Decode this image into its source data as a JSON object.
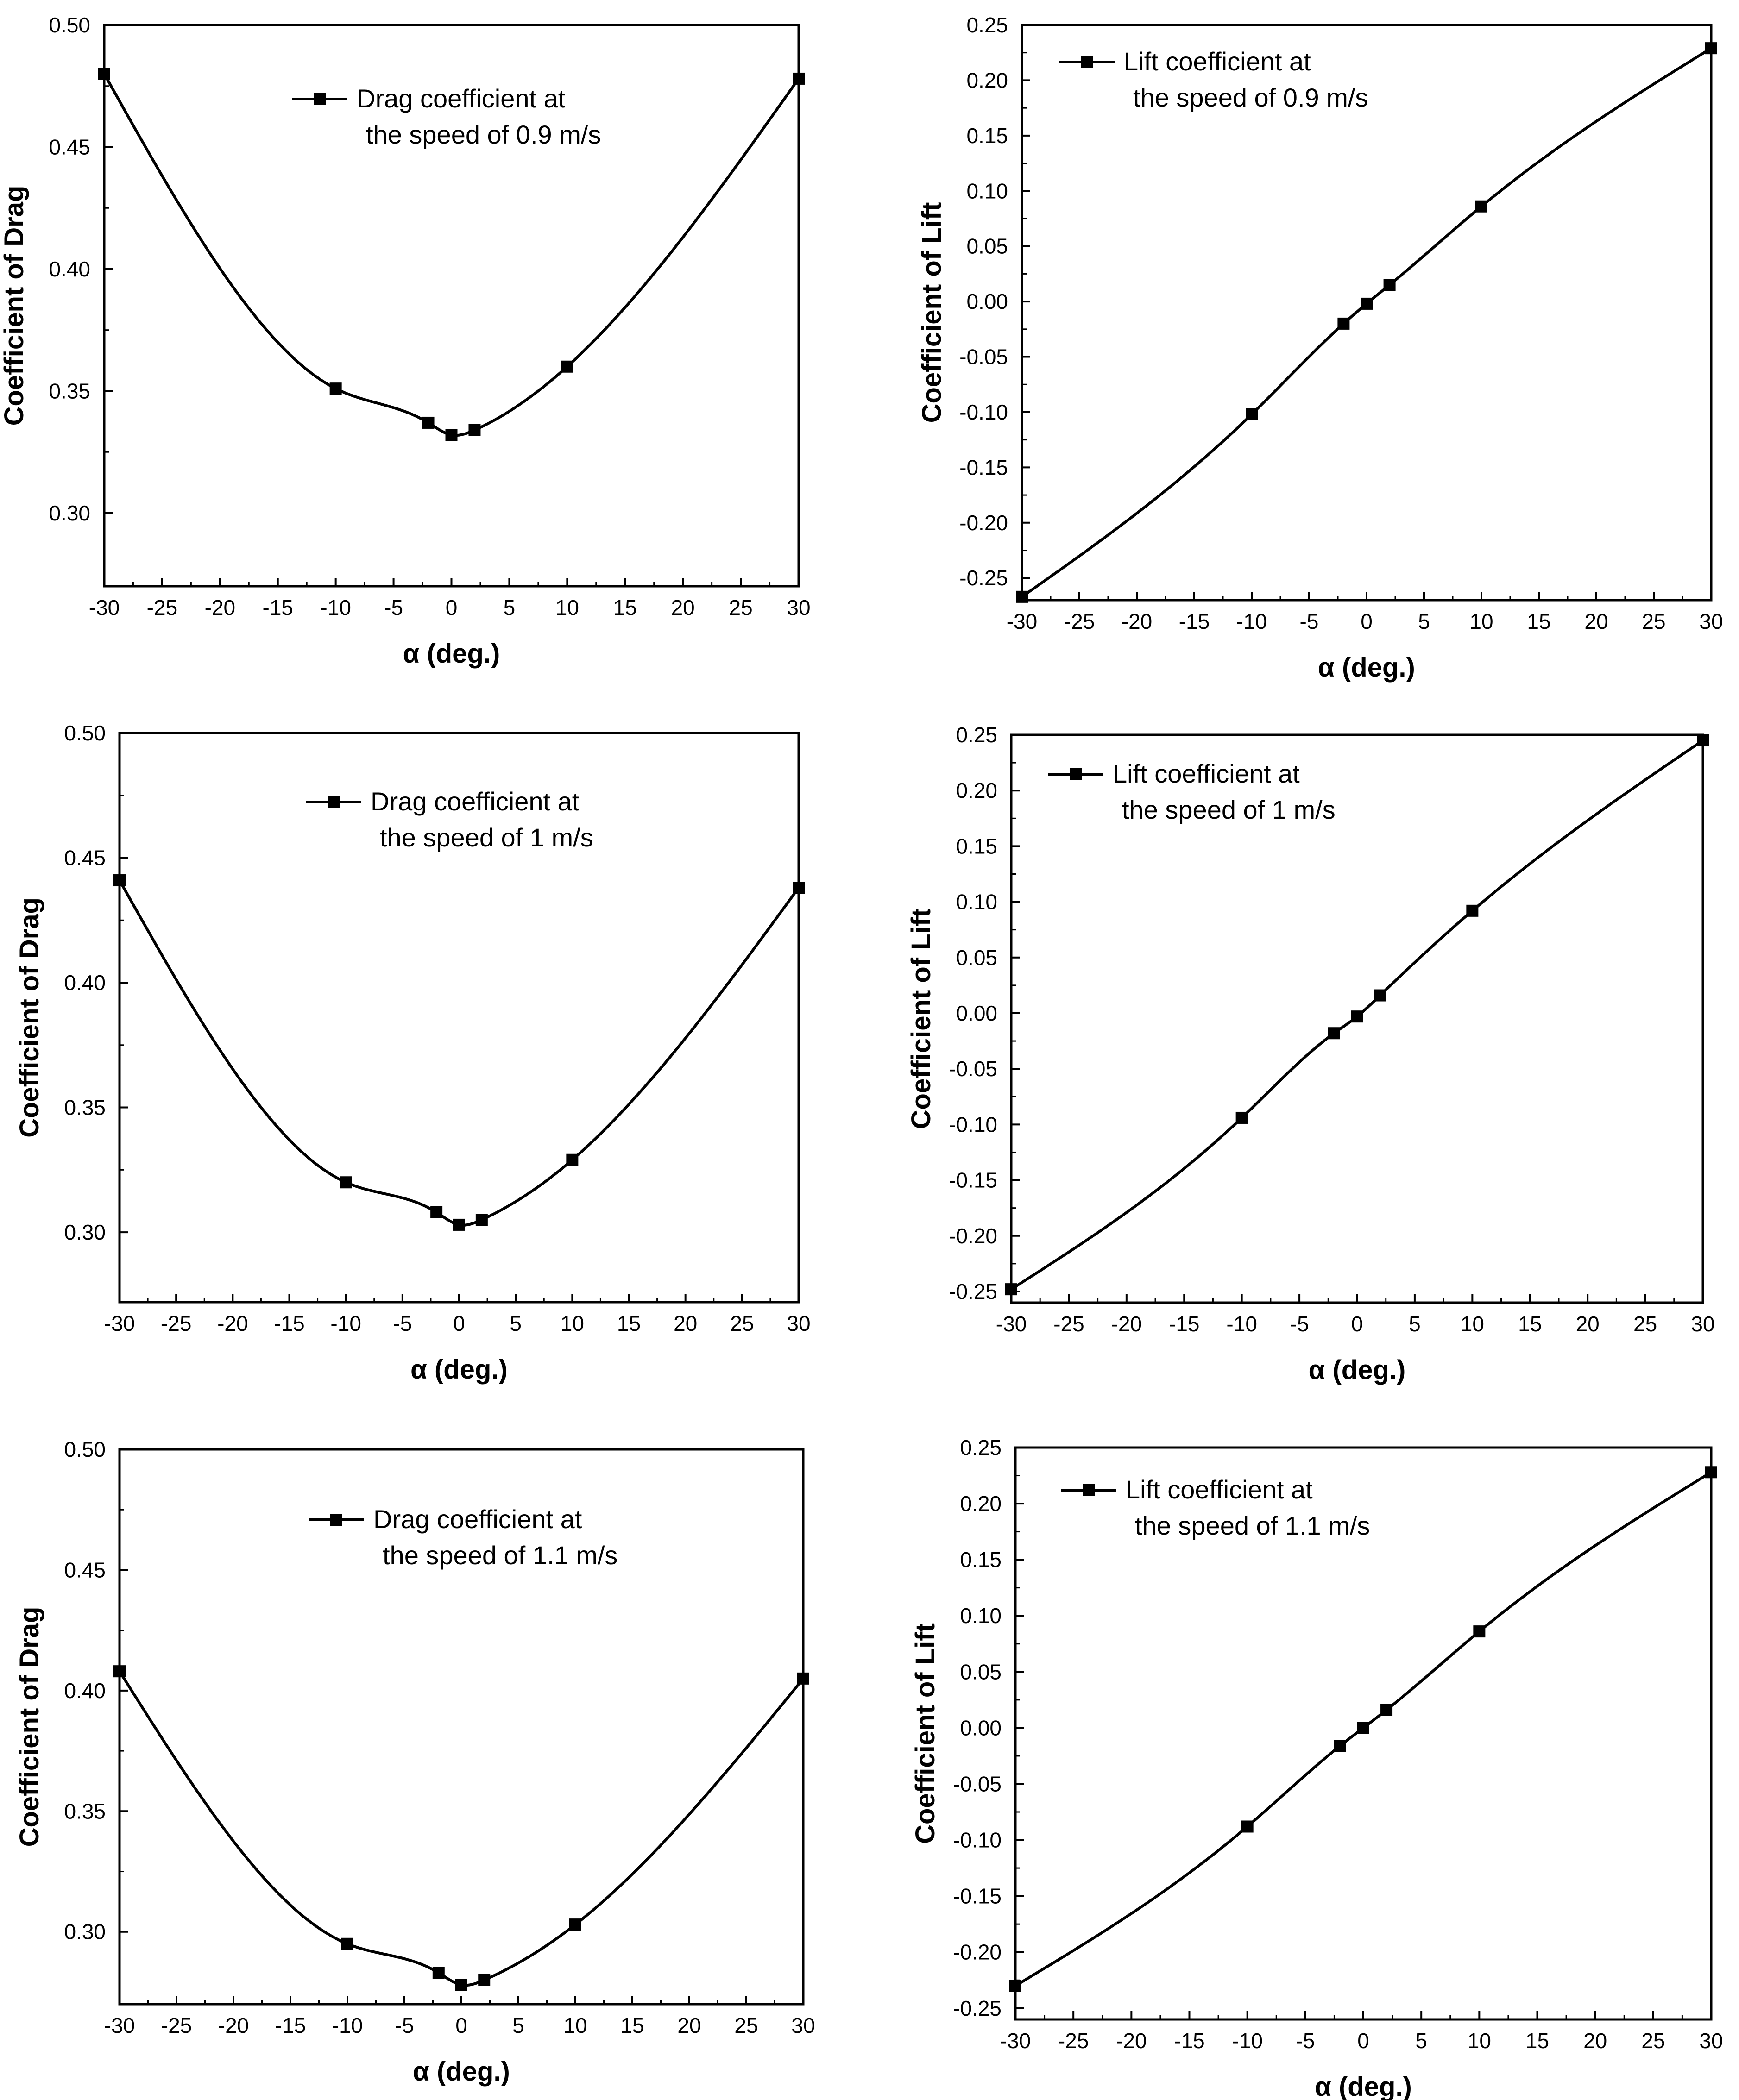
{
  "chart_data": [
    {
      "type": "line",
      "series_name": "Drag coefficient at the speed of 0.9 m/s",
      "legend_lines": [
        "Drag coefficient at",
        "the speed of 0.9 m/s"
      ],
      "xlabel": "α (deg.)",
      "ylabel": "Coefficient of Drag",
      "x": [
        -30,
        -10,
        -2,
        0,
        2,
        10,
        30
      ],
      "y": [
        0.48,
        0.351,
        0.337,
        0.332,
        0.334,
        0.36,
        0.478
      ],
      "xlim": [
        -30,
        30
      ],
      "ylim": [
        0.27,
        0.5
      ],
      "x_ticks": [
        "-30",
        "-25",
        "-20",
        "-15",
        "-10",
        "-5",
        "0",
        "5",
        "10",
        "15",
        "20",
        "25",
        "30"
      ],
      "y_ticks": [
        "0.30",
        "0.35",
        "0.40",
        "0.45",
        "0.50"
      ],
      "legend_position": "top-center"
    },
    {
      "type": "line",
      "series_name": "Lift coefficient at the speed of 0.9 m/s",
      "legend_lines": [
        "Lift coefficient at",
        "the speed of 0.9 m/s"
      ],
      "xlabel": "α (deg.)",
      "ylabel": "Coefficient of Lift",
      "x": [
        -30,
        -10,
        -2,
        0,
        2,
        10,
        30
      ],
      "y": [
        -0.267,
        -0.102,
        -0.02,
        -0.002,
        0.015,
        0.086,
        0.229
      ],
      "xlim": [
        -30,
        30
      ],
      "ylim": [
        -0.27,
        0.25
      ],
      "x_ticks": [
        "-30",
        "-25",
        "-20",
        "-15",
        "-10",
        "-5",
        "0",
        "5",
        "10",
        "15",
        "20",
        "25",
        "30"
      ],
      "y_ticks": [
        "-0.25",
        "-0.20",
        "-0.15",
        "-0.10",
        "-0.05",
        "0.00",
        "0.05",
        "0.10",
        "0.15",
        "0.20",
        "0.25"
      ],
      "legend_position": "top-left"
    },
    {
      "type": "line",
      "series_name": "Drag coefficient at the speed of 1 m/s",
      "legend_lines": [
        "Drag coefficient at",
        "the speed of 1 m/s"
      ],
      "xlabel": "α (deg.)",
      "ylabel": "Coefficient of Drag",
      "x": [
        -30,
        -10,
        -2,
        0,
        2,
        10,
        30
      ],
      "y": [
        0.441,
        0.32,
        0.308,
        0.303,
        0.305,
        0.329,
        0.438
      ],
      "xlim": [
        -30,
        30
      ],
      "ylim": [
        0.272,
        0.5
      ],
      "x_ticks": [
        "-30",
        "-25",
        "-20",
        "-15",
        "-10",
        "-5",
        "0",
        "5",
        "10",
        "15",
        "20",
        "25",
        "30"
      ],
      "y_ticks": [
        "0.30",
        "0.35",
        "0.40",
        "0.45",
        "0.50"
      ],
      "legend_position": "top-center"
    },
    {
      "type": "line",
      "series_name": "Lift coefficient at the speed of 1 m/s",
      "legend_lines": [
        "Lift coefficient at",
        "the speed of 1 m/s"
      ],
      "xlabel": "α (deg.)",
      "ylabel": "Coefficient of Lift",
      "x": [
        -30,
        -10,
        -2,
        0,
        2,
        10,
        30
      ],
      "y": [
        -0.248,
        -0.094,
        -0.018,
        -0.003,
        0.016,
        0.092,
        0.245
      ],
      "xlim": [
        -30,
        30
      ],
      "ylim": [
        -0.26,
        0.25
      ],
      "x_ticks": [
        "-30",
        "-25",
        "-20",
        "-15",
        "-10",
        "-5",
        "0",
        "5",
        "10",
        "15",
        "20",
        "25",
        "30"
      ],
      "y_ticks": [
        "-0.25",
        "-0.20",
        "-0.15",
        "-0.10",
        "-0.05",
        "0.00",
        "0.05",
        "0.10",
        "0.15",
        "0.20",
        "0.25"
      ],
      "legend_position": "top-left"
    },
    {
      "type": "line",
      "series_name": "Drag coefficient at the speed of 1.1 m/s",
      "legend_lines": [
        "Drag coefficient at",
        "the speed of 1.1 m/s"
      ],
      "xlabel": "α (deg.)",
      "ylabel": "Coefficient of Drag",
      "x": [
        -30,
        -10,
        -2,
        0,
        2,
        10,
        30
      ],
      "y": [
        0.408,
        0.295,
        0.283,
        0.278,
        0.28,
        0.303,
        0.405
      ],
      "xlim": [
        -30,
        30
      ],
      "ylim": [
        0.27,
        0.5
      ],
      "x_ticks": [
        "-30",
        "-25",
        "-20",
        "-15",
        "-10",
        "-5",
        "0",
        "5",
        "10",
        "15",
        "20",
        "25",
        "30"
      ],
      "y_ticks": [
        "0.30",
        "0.35",
        "0.40",
        "0.45",
        "0.50"
      ],
      "legend_position": "top-center"
    },
    {
      "type": "line",
      "series_name": "Lift coefficient at the speed of 1.1 m/s",
      "legend_lines": [
        "Lift coefficient at",
        "the speed of 1.1 m/s"
      ],
      "xlabel": "α (deg.)",
      "ylabel": "Coefficient of Lift",
      "x": [
        -30,
        -10,
        -2,
        0,
        2,
        10,
        30
      ],
      "y": [
        -0.23,
        -0.088,
        -0.016,
        0.0,
        0.016,
        0.086,
        0.228
      ],
      "xlim": [
        -30,
        30
      ],
      "ylim": [
        -0.26,
        0.25
      ],
      "x_ticks": [
        "-30",
        "-25",
        "-20",
        "-15",
        "-10",
        "-5",
        "0",
        "5",
        "10",
        "15",
        "20",
        "25",
        "30"
      ],
      "y_ticks": [
        "-0.25",
        "-0.20",
        "-0.15",
        "-0.10",
        "-0.05",
        "0.00",
        "0.05",
        "0.10",
        "0.15",
        "0.20",
        "0.25"
      ],
      "legend_position": "top-left"
    }
  ],
  "colors": {
    "line": "#000000",
    "marker": "#000000",
    "background": "#ffffff"
  }
}
